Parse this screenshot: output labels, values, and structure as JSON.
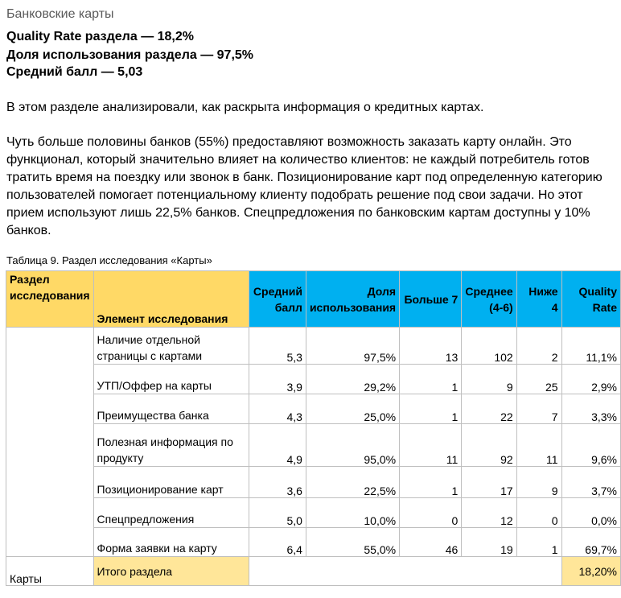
{
  "header": {
    "section_title": "Банковские карты",
    "metrics": [
      "Quality Rate раздела — 18,2%",
      "Доля использования раздела — 97,5%",
      "Средний балл — 5,03"
    ]
  },
  "intro": "В этом разделе анализировали, как раскрыта информация о кредитных картах.",
  "body_text": "Чуть больше половины банков (55%) предоставляют возможность заказать карту онлайн. Это функционал, который значительно влияет на количество клиентов: не каждый потребитель готов тратить время на поездку или звонок в банк. Позиционирование карт под определенную категорию пользователей помогает потенциальному клиенту подобрать решение под свои задачи. Но этот прием используют лишь 22,5% банков. Спецпредложения по банковским картам доступны у 10% банков.",
  "table": {
    "caption": "Таблица 9. Раздел исследования «Карты»",
    "headers": {
      "section": "Раздел исследования",
      "element": "Элемент исследования",
      "avg": "Средний балл",
      "usage": "Доля использования",
      "above7": "Больше 7",
      "mid": "Среднее (4-6)",
      "below4": "Ниже 4",
      "qr": "Quality Rate"
    },
    "rows": [
      {
        "element": "Наличие отдельной страницы с картами",
        "avg": "5,3",
        "usage": "97,5%",
        "above7": "13",
        "mid": "102",
        "below4": "2",
        "qr": "11,1%"
      },
      {
        "element": "УТП/Оффер на карты",
        "avg": "3,9",
        "usage": "29,2%",
        "above7": "1",
        "mid": "9",
        "below4": "25",
        "qr": "2,9%"
      },
      {
        "element": "Преимущества банка",
        "avg": "4,3",
        "usage": "25,0%",
        "above7": "1",
        "mid": "22",
        "below4": "7",
        "qr": "3,3%"
      },
      {
        "element": "Полезная информация по продукту",
        "avg": "4,9",
        "usage": "95,0%",
        "above7": "11",
        "mid": "92",
        "below4": "11",
        "qr": "9,6%"
      },
      {
        "element": "Позиционирование карт",
        "avg": "3,6",
        "usage": "22,5%",
        "above7": "1",
        "mid": "17",
        "below4": "9",
        "qr": "3,7%"
      },
      {
        "element": "Спецпредложения",
        "avg": "5,0",
        "usage": "10,0%",
        "above7": "0",
        "mid": "12",
        "below4": "0",
        "qr": "0,0%"
      },
      {
        "element": "Форма заявки на карту",
        "avg": "6,4",
        "usage": "55,0%",
        "above7": "46",
        "mid": "19",
        "below4": "1",
        "qr": "69,7%"
      }
    ],
    "section_name": "Карты",
    "total_label": "Итого раздела",
    "total_qr": "18,20%"
  }
}
